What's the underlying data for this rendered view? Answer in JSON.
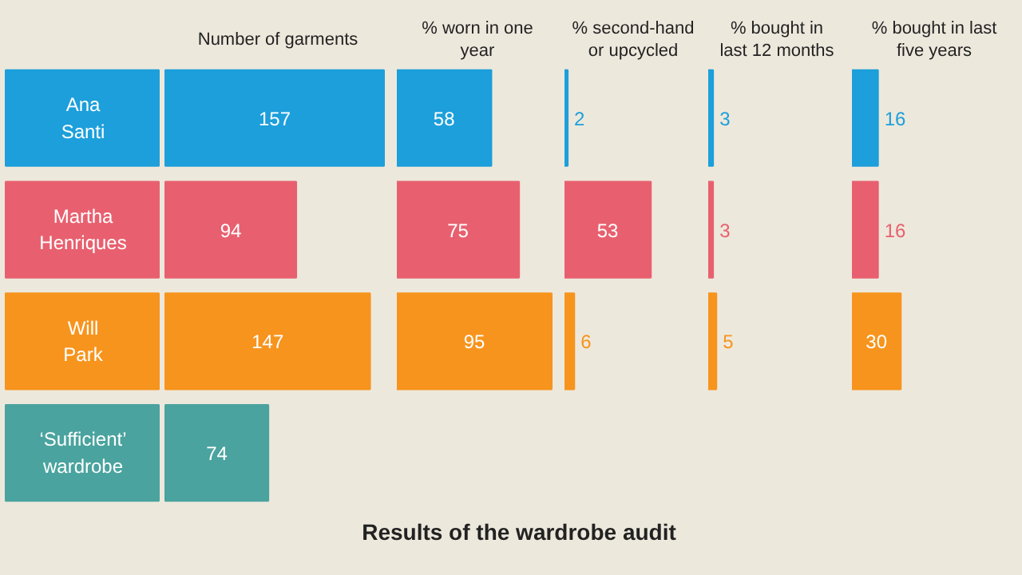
{
  "chart_data": [
    {
      "type": "bar",
      "orientation": "horizontal",
      "title": "Number of garments",
      "categories": [
        "Ana Santi",
        "Martha Henriques",
        "Will Park",
        "‘Sufficient’ wardrobe"
      ],
      "values": [
        157,
        94,
        147,
        74
      ],
      "colors": [
        "#1c9fdb",
        "#e8606f",
        "#f7941d",
        "#4aa39e"
      ],
      "tick_labels": "y",
      "data_labels": true,
      "grid": false,
      "annotations": [
        "Results of the wardrobe audit"
      ]
    },
    {
      "type": "bar",
      "orientation": "horizontal",
      "title": "% worn in one year",
      "categories": [
        null,
        null,
        null,
        null
      ],
      "values": [
        58,
        75,
        95,
        null
      ],
      "colors": [
        "#1c9fdb",
        "#e8606f",
        "#f7941d",
        "#4aa39e"
      ],
      "tick_labels": false,
      "data_labels": true,
      "grid": false
    },
    {
      "type": "bar",
      "orientation": "horizontal",
      "title": "% second-hand or upcycled",
      "categories": [
        null,
        null,
        null,
        null
      ],
      "values": [
        2,
        53,
        6,
        null
      ],
      "colors": [
        "#1c9fdb",
        "#e8606f",
        "#f7941d",
        "#4aa39e"
      ],
      "tick_labels": false,
      "data_labels": true,
      "grid": false
    },
    {
      "type": "bar",
      "orientation": "horizontal",
      "title": "% bought in last 12 months",
      "categories": [
        null,
        null,
        null,
        null
      ],
      "values": [
        3,
        3,
        5,
        null
      ],
      "colors": [
        "#1c9fdb",
        "#e8606f",
        "#f7941d",
        "#4aa39e"
      ],
      "tick_labels": false,
      "data_labels": true,
      "grid": false
    },
    {
      "type": "bar",
      "orientation": "horizontal",
      "title": "% bought in last five years",
      "categories": [
        null,
        null,
        null,
        null
      ],
      "values": [
        16,
        16,
        30,
        null
      ],
      "colors": [
        "#1c9fdb",
        "#e8606f",
        "#f7941d",
        "#4aa39e"
      ],
      "tick_labels": false,
      "data_labels": true,
      "grid": false
    }
  ]
}
